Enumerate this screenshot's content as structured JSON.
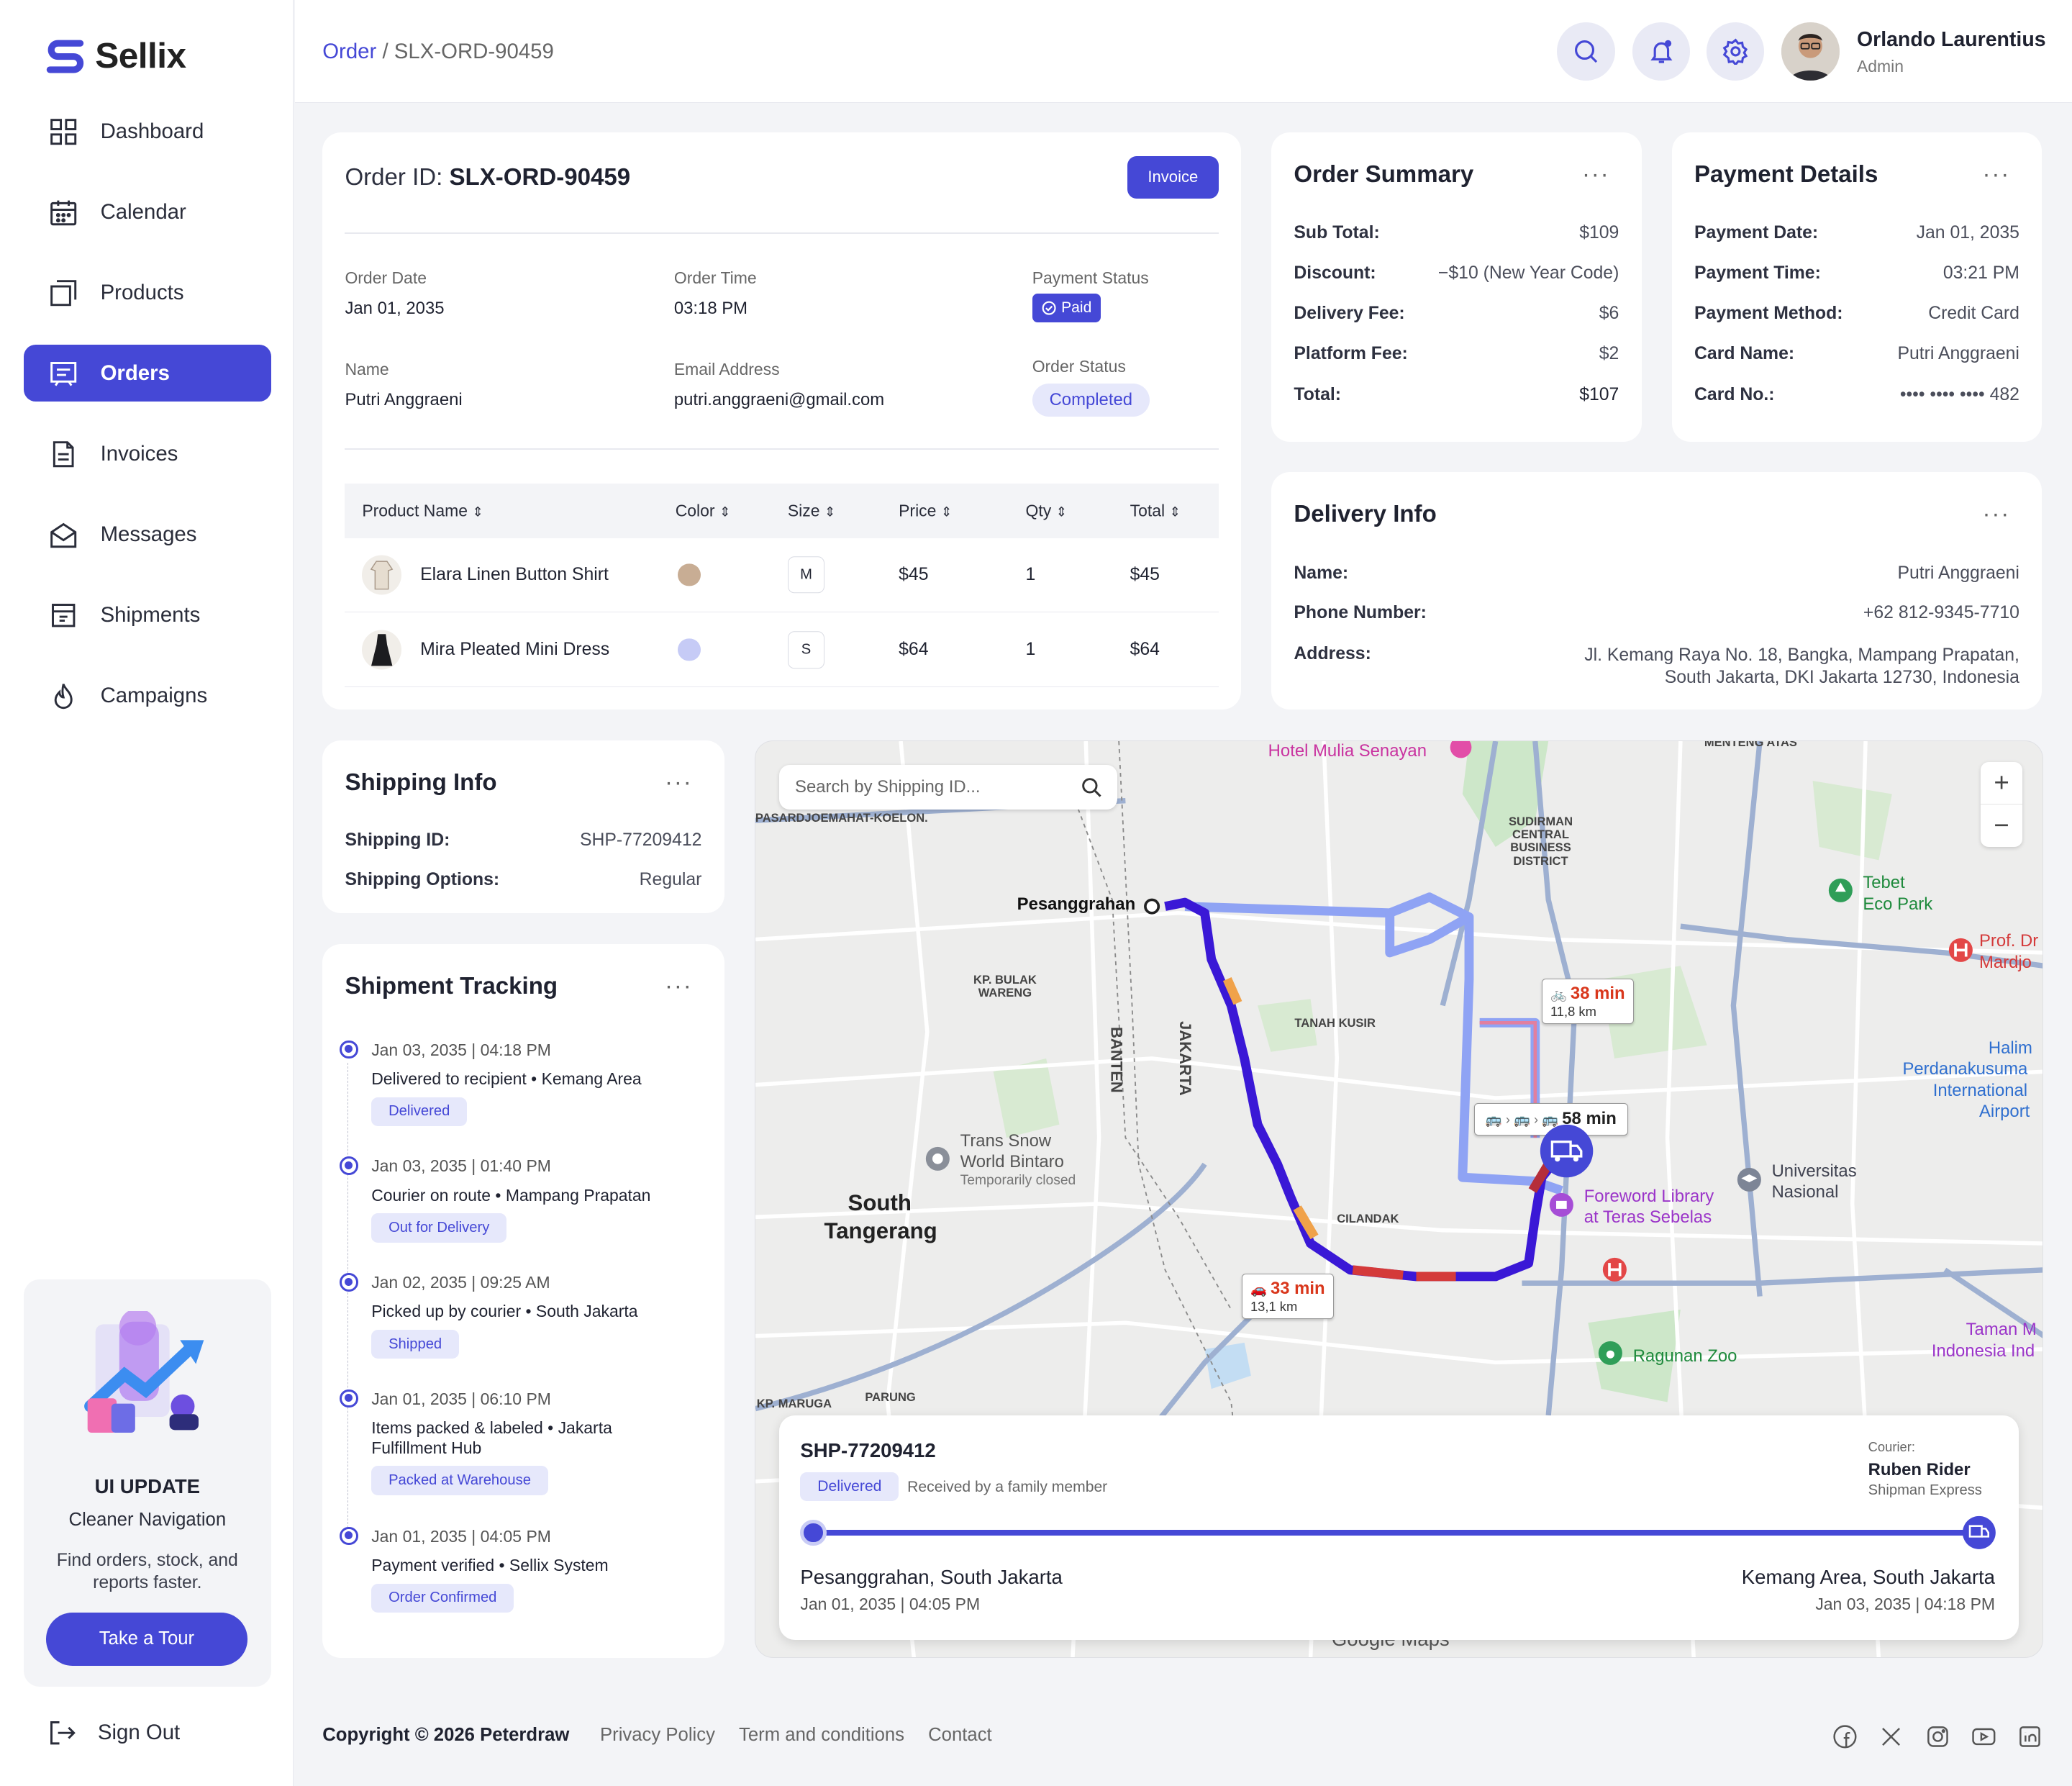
{
  "brand": {
    "name": "Sellix"
  },
  "nav": [
    {
      "label": "Dashboard"
    },
    {
      "label": "Calendar"
    },
    {
      "label": "Products"
    },
    {
      "label": "Orders"
    },
    {
      "label": "Invoices"
    },
    {
      "label": "Messages"
    },
    {
      "label": "Shipments"
    },
    {
      "label": "Campaigns"
    }
  ],
  "promo": {
    "title": "UI UPDATE",
    "subtitle": "Cleaner Navigation",
    "text": "Find orders, stock, and reports faster.",
    "button": "Take a Tour"
  },
  "signout": "Sign Out",
  "breadcrumb": {
    "parent": "Order",
    "current": "SLX-ORD-90459"
  },
  "user": {
    "name": "Orlando Laurentius",
    "role": "Admin"
  },
  "order": {
    "id_label": "Order ID:",
    "id": "SLX-ORD-90459",
    "invoice_button": "Invoice",
    "order_date_label": "Order Date",
    "order_date": "Jan 01, 2035",
    "order_time_label": "Order Time",
    "order_time": "03:18 PM",
    "payment_status_label": "Payment Status",
    "payment_status": "Paid",
    "name_label": "Name",
    "name": "Putri Anggraeni",
    "email_label": "Email Address",
    "email": "putri.anggraeni@gmail.com",
    "order_status_label": "Order Status",
    "order_status": "Completed",
    "columns": [
      "Product Name",
      "Color",
      "Size",
      "Price",
      "Qty",
      "Total"
    ],
    "items": [
      {
        "name": "Elara Linen Button Shirt",
        "color": "#c8ad94",
        "size": "M",
        "price": "$45",
        "qty": "1",
        "total": "$45"
      },
      {
        "name": "Mira Pleated Mini Dress",
        "color": "#c6cbf6",
        "size": "S",
        "price": "$64",
        "qty": "1",
        "total": "$64"
      }
    ]
  },
  "summary": {
    "title": "Order Summary",
    "rows": [
      {
        "k": "Sub Total:",
        "v": "$109"
      },
      {
        "k": "Discount:",
        "v": "−$10 (New Year Code)"
      },
      {
        "k": "Delivery Fee:",
        "v": "$6"
      },
      {
        "k": "Platform Fee:",
        "v": "$2"
      },
      {
        "k": "Total:",
        "v": "$107"
      }
    ]
  },
  "payment": {
    "title": "Payment Details",
    "rows": [
      {
        "k": "Payment Date:",
        "v": "Jan 01, 2035"
      },
      {
        "k": "Payment Time:",
        "v": "03:21 PM"
      },
      {
        "k": "Payment Method:",
        "v": "Credit Card"
      },
      {
        "k": "Card Name:",
        "v": "Putri Anggraeni"
      },
      {
        "k": "Card No.:",
        "v": "•••• •••• •••• 482"
      }
    ]
  },
  "delivery": {
    "title": "Delivery Info",
    "name_label": "Name:",
    "name": "Putri Anggraeni",
    "phone_label": "Phone Number:",
    "phone": "+62 812-9345-7710",
    "address_label": "Address:",
    "address_line1": "Jl. Kemang Raya No. 18, Bangka, Mampang Prapatan,",
    "address_line2": "South Jakarta, DKI Jakarta 12730, Indonesia"
  },
  "shipping": {
    "title": "Shipping Info",
    "id_label": "Shipping ID:",
    "id": "SHP-77209412",
    "options_label": "Shipping Options:",
    "options": "Regular"
  },
  "tracking": {
    "title": "Shipment Tracking",
    "events": [
      {
        "date": "Jan 03, 2035 | 04:18 PM",
        "desc": "Delivered to recipient • Kemang Area",
        "badge": "Delivered"
      },
      {
        "date": "Jan 03, 2035 | 01:40 PM",
        "desc": "Courier on route • Mampang Prapatan",
        "badge": "Out for Delivery"
      },
      {
        "date": "Jan 02, 2035 | 09:25 AM",
        "desc": "Picked up by courier • South Jakarta",
        "badge": "Shipped"
      },
      {
        "date": "Jan 01, 2035 | 06:10 PM",
        "desc": "Items packed & labeled • Jakarta Fulfillment Hub",
        "badge": "Packed at Warehouse"
      },
      {
        "date": "Jan 01, 2035 | 04:05 PM",
        "desc": "Payment verified • Sellix System",
        "badge": "Order Confirmed"
      }
    ]
  },
  "map": {
    "search_placeholder": "Search by Shipping ID...",
    "labels": {
      "origin": "Pesanggrahan",
      "city": "South",
      "city2": "Tangerang",
      "tebet": "Tebet",
      "tebet2": "Eco Park",
      "hotel": "Hotel Mulia Senayan",
      "library": "Foreword Library",
      "library2": "at Teras Sebelas",
      "zoo": "Ragunan Zoo",
      "univ": "Universitas",
      "univ2": "Nasional",
      "transsnow": "Trans Snow",
      "transsnow2": "World Bintaro",
      "closed": "Temporarily closed",
      "halim": "Halim",
      "halim2": "Perdanakusuma",
      "halim3": "International",
      "halim4": "Airport",
      "sudirman": "SUDIRMAN",
      "sudirman2": "CENTRAL",
      "sudirman3": "BUSINESS",
      "sudirman4": "DISTRICT",
      "bulak": "KP. BULAK",
      "bulak2": "WARENG",
      "tanah": "TANAH KUSIR",
      "cilandak": "CILANDAK",
      "banten": "BANTEN",
      "jakarta": "JAKARTA",
      "google": "Google Maps",
      "pasar": "PASARDJOEMAHAT-KOELON.",
      "menteng": "MENTENG ATAS",
      "maruga": "KP. MARUGA",
      "parung": "PARUNG",
      "tamanm": "Taman M",
      "indonesia": "Indonesia Ind",
      "prof": "Prof. Dr",
      "mardjo": "Mardjo"
    },
    "route_bike_time": "38 min",
    "route_bike_dist": "11,8 km",
    "route_transit_time": "58 min",
    "route_car_time": "33 min",
    "route_car_dist": "13,1 km"
  },
  "tracker": {
    "id": "SHP-77209412",
    "status": "Delivered",
    "note": "Received by a family member",
    "courier_label": "Courier:",
    "courier": "Ruben Rider",
    "company": "Shipman Express",
    "progress": 1.0,
    "from": "Pesanggrahan, South Jakarta",
    "from_date": "Jan 01, 2035 | 04:05 PM",
    "to": "Kemang Area, South Jakarta",
    "to_date": "Jan 03, 2035 | 04:18 PM"
  },
  "footer": {
    "copyright": "Copyright © 2026 Peterdraw",
    "links": [
      "Privacy Policy",
      "Term and conditions",
      "Contact"
    ]
  },
  "colors": {
    "accent": "#4548d6",
    "accent_light": "#e6e8fb"
  }
}
